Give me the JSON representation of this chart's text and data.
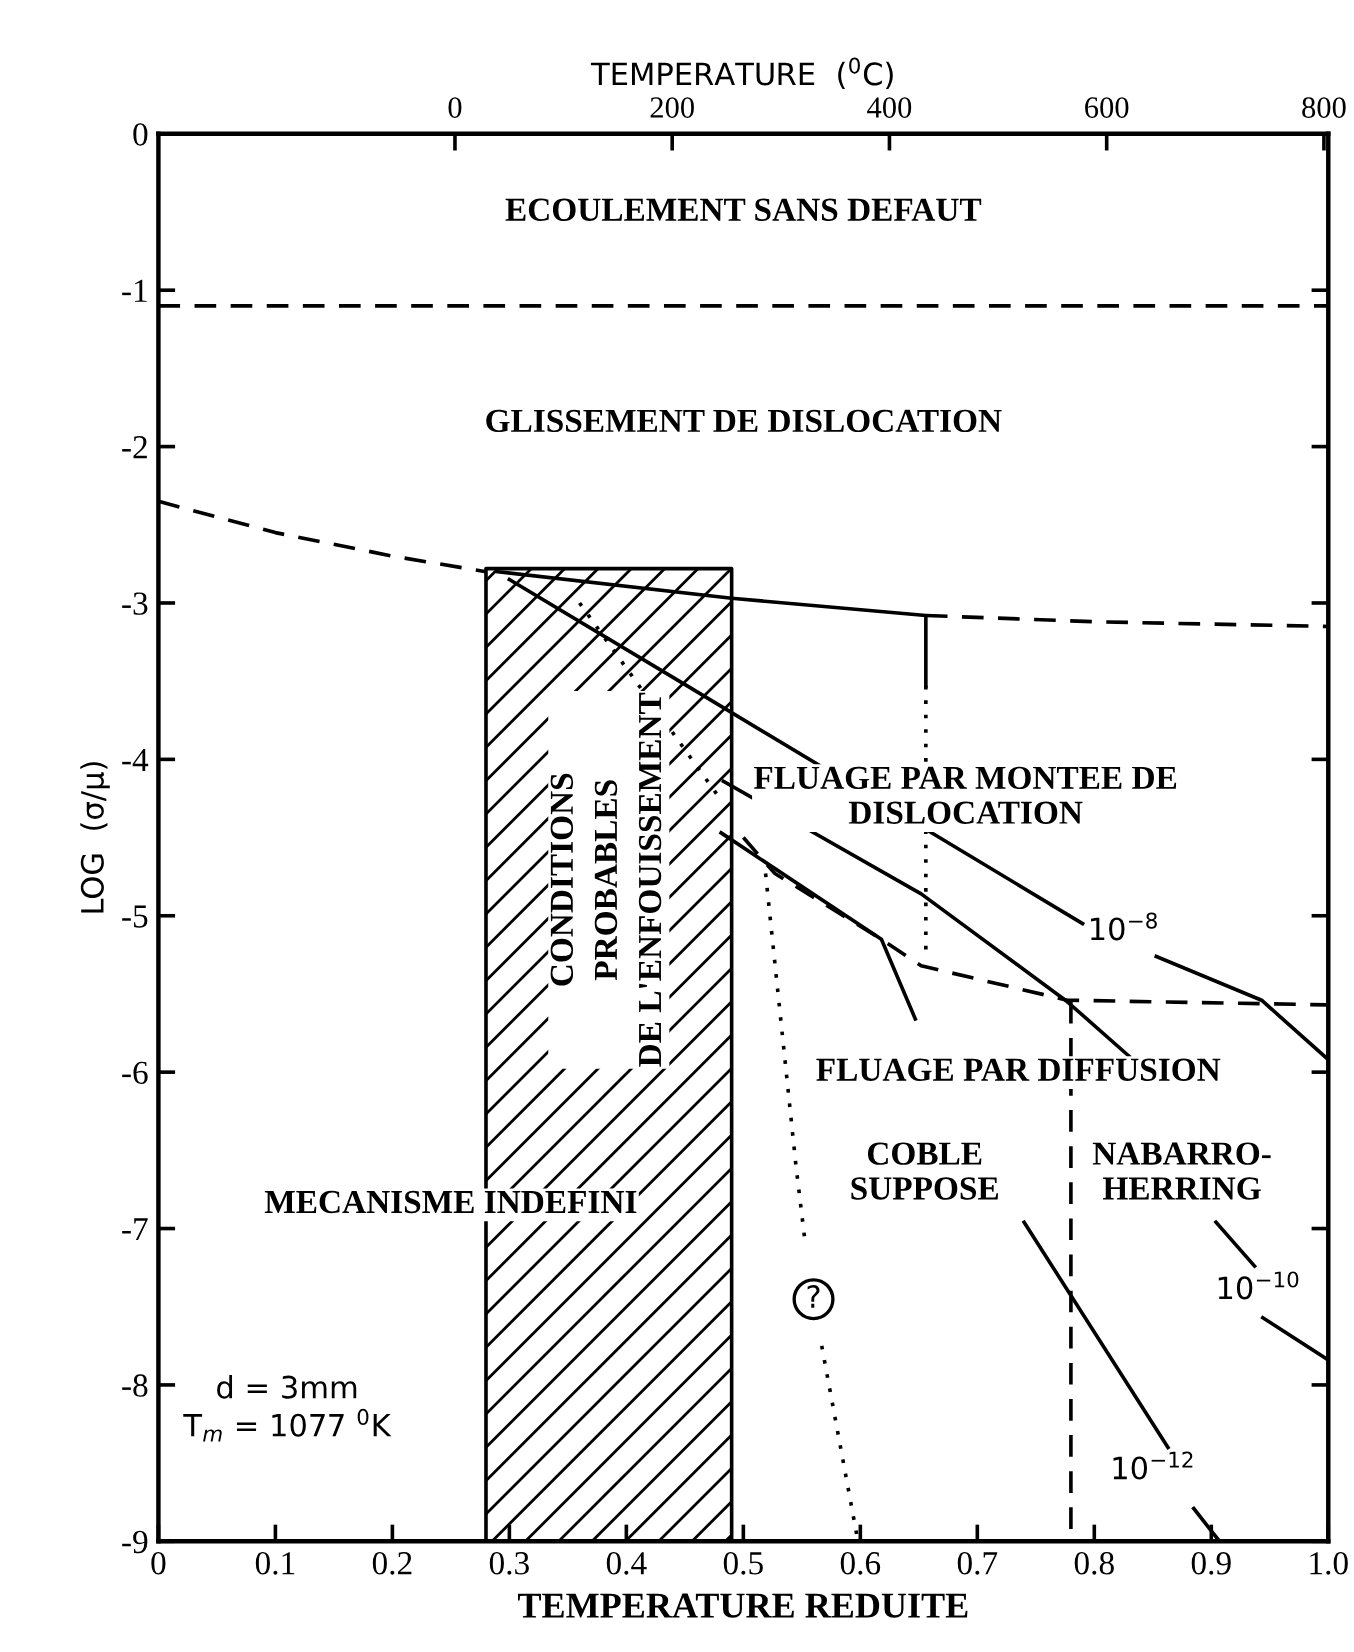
{
  "chart_data": {
    "type": "line",
    "xlabel": "TEMPERATURE REDUITE",
    "ylabel": "LOG  (σ/μ)",
    "x2label": "TEMPERATURE  ($^{0}$C)",
    "xlim": [
      0,
      1
    ],
    "xticks": [
      0,
      0.1,
      0.2,
      0.3,
      0.4,
      0.5,
      0.6,
      0.7,
      0.8,
      0.9,
      {
        "value": 1,
        "label": "1.0"
      }
    ],
    "ylim": [
      -9,
      0
    ],
    "yticks": [
      -9,
      -8,
      -7,
      -6,
      -5,
      -4,
      -3,
      -2,
      -1,
      0
    ],
    "x2lim": [
      -273,
      804
    ],
    "x2ticks": [
      0,
      200,
      400,
      600,
      800
    ],
    "grid": false,
    "legend": false,
    "marker": "none",
    "series": [
      {
        "color": "#000000",
        "line_style": "solid",
        "x": [
          0.28,
          0.28,
          0.49,
          0.49
        ],
        "values": [
          -9,
          -2.78,
          -2.78,
          -9
        ]
      },
      {
        "color": "#000000",
        "line_style": "dashed",
        "x": [
          0,
          1
        ],
        "values": [
          -1.1,
          -1.1
        ]
      },
      {
        "color": "#000000",
        "line_style": "dashed",
        "x": [
          0,
          0.1,
          0.2,
          0.28
        ],
        "values": [
          -2.35,
          -2.55,
          -2.7,
          -2.8
        ]
      },
      {
        "color": "#000000",
        "line_style": "solid",
        "x": [
          0.29,
          0.49,
          0.656,
          0.656
        ],
        "values": [
          -2.8,
          -2.97,
          -3.08,
          -3.53
        ]
      },
      {
        "color": "#000000",
        "line_style": "dashed",
        "x": [
          0.656,
          0.8,
          1
        ],
        "values": [
          -3.08,
          -3.12,
          -3.15
        ]
      },
      {
        "color": "#000000",
        "line_style": "dotted",
        "x": [
          0.656,
          0.656
        ],
        "values": [
          -3.53,
          -5.28
        ]
      },
      {
        "color": "#000000",
        "line_style": "dashed",
        "x": [
          0.5,
          0.527,
          0.618,
          0.652,
          0.777,
          1
        ],
        "values": [
          -4.5,
          -4.73,
          -5.15,
          -5.32,
          -5.54,
          -5.57
        ]
      },
      {
        "color": "#000000",
        "line_style": "dashed",
        "x": [
          0.78,
          0.78
        ],
        "values": [
          -5.55,
          -9
        ]
      },
      {
        "color": "#000000",
        "line_style": "solid",
        "x": [
          0.3,
          0.452,
          0.79,
          0.8,
          0.853,
          0.943,
          1
        ],
        "values": [
          -2.85,
          -3.53,
          -5.05,
          null,
          -5.26,
          -5.54,
          -5.92
        ]
      },
      {
        "color": "#000000",
        "line_style": "solid",
        "x": [
          0.483,
          0.652,
          0.777,
          0.83,
          0.87,
          0.904,
          0.937,
          0.94,
          0.944,
          1
        ],
        "values": [
          -4.14,
          -4.86,
          -5.55,
          -5.9,
          null,
          -6.96,
          -7.24,
          null,
          -7.57,
          -7.84
        ]
      },
      {
        "color": "#000000",
        "line_style": "solid",
        "x": [
          0.481,
          0.618,
          0.647,
          0.7,
          0.74,
          0.863,
          0.87,
          0.885,
          0.907
        ],
        "values": [
          -4.47,
          -5.15,
          -5.66,
          null,
          -6.96,
          -8.4,
          null,
          -8.79,
          -9.0
        ]
      },
      {
        "color": "#000000",
        "line_style": "dotted",
        "x": [
          0.36,
          0.48
        ],
        "values": [
          -3.0,
          -4.25
        ]
      },
      {
        "color": "#000000",
        "line_style": "dotted",
        "x": [
          0.519,
          0.545,
          0.553,
          0.56,
          0.567,
          0.598
        ],
        "values": [
          -4.73,
          -6.6,
          -7.1,
          null,
          -7.75,
          -9.0
        ]
      }
    ],
    "bands": [
      {
        "axis": "x",
        "from": 0.28,
        "to": 0.49,
        "color": "#000000"
      }
    ],
    "annotations": [
      "ECOULEMENT SANS DEFAUT",
      "GLISSEMENT DE DISLOCATION",
      "CONDITIONS\nPROBABLES\nDE L'ENFOUISSEMENT",
      "FLUAGE PAR MONTEE DE\nDISLOCATION",
      "FLUAGE PAR DIFFUSION",
      "COBLE\nSUPPOSE",
      "NABARRO-\nHERRING",
      "MECANISME INDEFINI",
      "10$^{−8}$",
      "10$^{−10}$",
      "10$^{−12}$",
      "?",
      "d = 3mm\nT$_{m}$ = 1077 $^{0}$K"
    ]
  }
}
